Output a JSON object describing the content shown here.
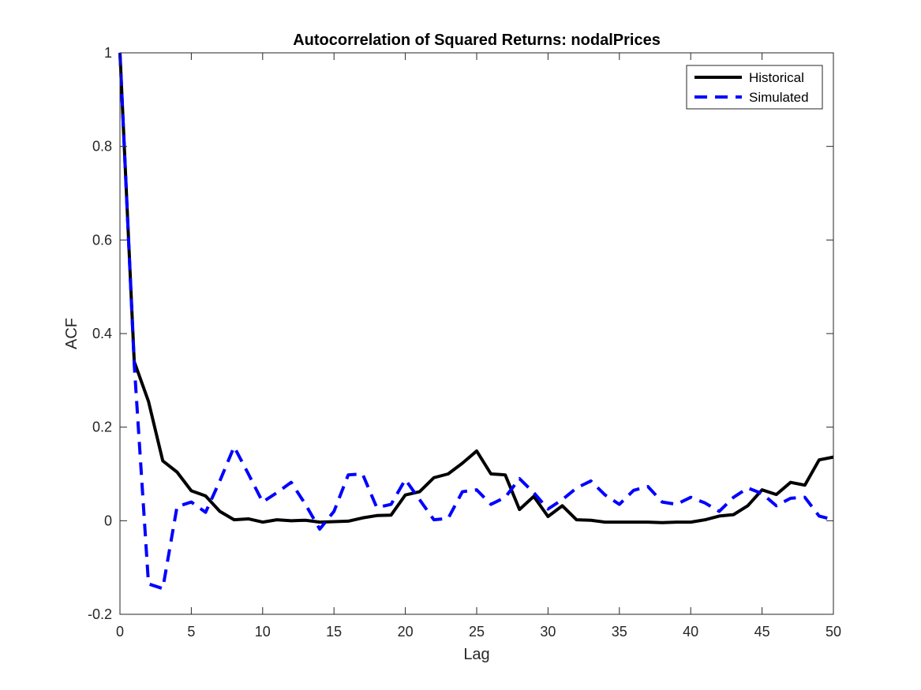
{
  "chart_data": {
    "type": "line",
    "title": "Autocorrelation of Squared Returns: nodalPrices",
    "xlabel": "Lag",
    "ylabel": "ACF",
    "xlim": [
      0,
      50
    ],
    "ylim": [
      -0.2,
      1
    ],
    "xticks": [
      0,
      5,
      10,
      15,
      20,
      25,
      30,
      35,
      40,
      45,
      50
    ],
    "yticks": [
      -0.2,
      0,
      0.2,
      0.4,
      0.6,
      0.8,
      1
    ],
    "ytick_labels": [
      "-0.2",
      "0",
      "0.2",
      "0.4",
      "0.6",
      "0.8",
      "1"
    ],
    "grid": false,
    "legend_position": "top-right",
    "x": [
      0,
      1,
      2,
      3,
      4,
      5,
      6,
      7,
      8,
      9,
      10,
      11,
      12,
      13,
      14,
      15,
      16,
      17,
      18,
      19,
      20,
      21,
      22,
      23,
      24,
      25,
      26,
      27,
      28,
      29,
      30,
      31,
      32,
      33,
      34,
      35,
      36,
      37,
      38,
      39,
      40,
      41,
      42,
      43,
      44,
      45,
      46,
      47,
      48,
      49,
      50
    ],
    "series": [
      {
        "name": "Historical",
        "color": "#000000",
        "style": "solid",
        "values": [
          1.0,
          0.34,
          0.255,
          0.128,
          0.104,
          0.064,
          0.053,
          0.02,
          0.002,
          0.004,
          -0.003,
          0.002,
          0.0,
          0.001,
          -0.003,
          -0.002,
          -0.001,
          0.006,
          0.011,
          0.012,
          0.055,
          0.062,
          0.092,
          0.1,
          0.123,
          0.149,
          0.1,
          0.098,
          0.024,
          0.052,
          0.009,
          0.032,
          0.002,
          0.001,
          -0.003,
          -0.003,
          -0.003,
          -0.003,
          -0.004,
          -0.003,
          -0.003,
          0.002,
          0.01,
          0.013,
          0.032,
          0.066,
          0.056,
          0.082,
          0.076,
          0.13,
          0.136
        ]
      },
      {
        "name": "Simulated",
        "color": "#0000ff",
        "style": "dashed",
        "values": [
          1.0,
          0.335,
          -0.135,
          -0.145,
          0.03,
          0.04,
          0.018,
          0.085,
          0.158,
          0.1,
          0.04,
          0.06,
          0.082,
          0.035,
          -0.018,
          0.02,
          0.098,
          0.1,
          0.028,
          0.035,
          0.088,
          0.045,
          0.002,
          0.005,
          0.062,
          0.066,
          0.035,
          0.05,
          0.09,
          0.06,
          0.025,
          0.045,
          0.07,
          0.085,
          0.055,
          0.035,
          0.065,
          0.073,
          0.04,
          0.035,
          0.05,
          0.038,
          0.02,
          0.05,
          0.07,
          0.058,
          0.032,
          0.048,
          0.05,
          0.01,
          0.002
        ]
      }
    ]
  }
}
